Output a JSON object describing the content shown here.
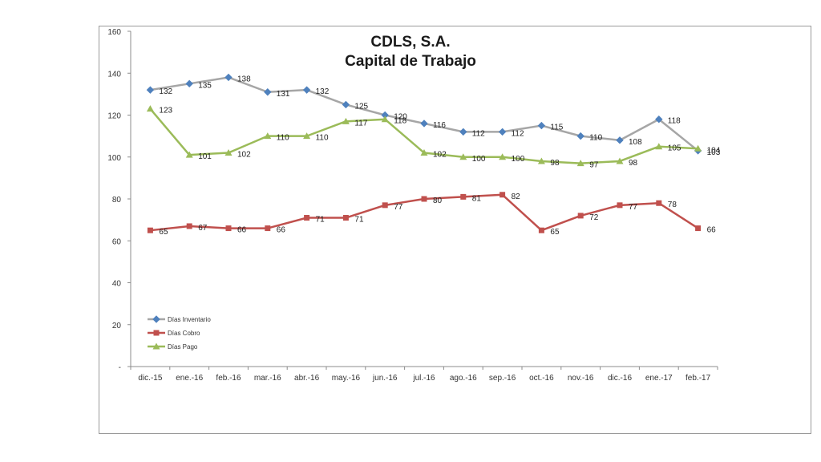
{
  "chart_data": {
    "type": "line",
    "title": "CDLS, S.A.",
    "subtitle": "Capital de Trabajo",
    "xlabel": "",
    "ylabel": "",
    "categories": [
      "dic.-15",
      "ene.-16",
      "feb.-16",
      "mar.-16",
      "abr.-16",
      "may.-16",
      "jun.-16",
      "jul.-16",
      "ago.-16",
      "sep.-16",
      "oct.-16",
      "nov.-16",
      "dic.-16",
      "ene.-17",
      "feb.-17"
    ],
    "ylim": [
      0,
      160
    ],
    "yticks": [
      0,
      20,
      40,
      60,
      80,
      100,
      120,
      140,
      160
    ],
    "ytick_labels": [
      "-",
      "20",
      "40",
      "60",
      "80",
      "100",
      "120",
      "140",
      "160"
    ],
    "grid": false,
    "legend": "bottom-left",
    "series": [
      {
        "name": "Días Inventario",
        "line_color": "#a6a6a6",
        "marker_color": "#4f81bd",
        "marker": "diamond",
        "values": [
          132,
          135,
          138,
          131,
          132,
          125,
          120,
          116,
          112,
          112,
          115,
          110,
          108,
          118,
          103
        ],
        "labels": [
          "132",
          "135",
          "138",
          "131",
          "132",
          "125",
          "120",
          "116",
          "112",
          "112",
          "115",
          "110",
          "108",
          "118",
          "103"
        ]
      },
      {
        "name": "Días Cobro",
        "line_color": "#c0504d",
        "marker_color": "#c0504d",
        "marker": "square",
        "values": [
          65,
          67,
          66,
          66,
          71,
          71,
          77,
          80,
          81,
          82,
          65,
          72,
          77,
          78,
          66
        ],
        "labels": [
          "65",
          "67",
          "66",
          "66",
          "71",
          "71",
          "77",
          "80",
          "81",
          "82",
          "65",
          "72",
          "77",
          "78",
          "66"
        ]
      },
      {
        "name": "Días Pago",
        "line_color": "#9bbb59",
        "marker_color": "#9bbb59",
        "marker": "triangle",
        "values": [
          123,
          101,
          102,
          110,
          110,
          117,
          118,
          102,
          100,
          100,
          98,
          97,
          98,
          105,
          104
        ],
        "labels": [
          "123",
          "101",
          "102",
          "110",
          "110",
          "117",
          "118",
          "102",
          "100",
          "100",
          "98",
          "97",
          "98",
          "105",
          "104"
        ]
      }
    ]
  }
}
